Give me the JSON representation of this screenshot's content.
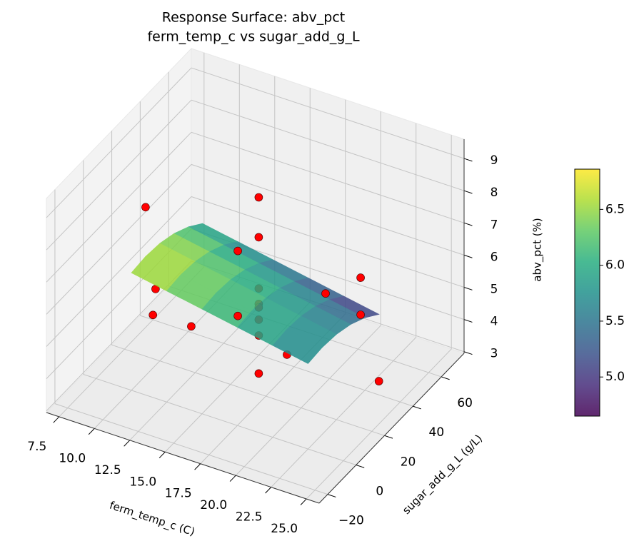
{
  "chart_data": {
    "type": "surface3d",
    "title": "Response Surface: abv_pct",
    "subtitle": "ferm_temp_c vs sugar_add_g_L",
    "xlabel": "ferm_temp_c (C)",
    "ylabel": "sugar_add_g_L (g/L)",
    "zlabel": "abv_pct (%)",
    "xlim": [
      6.6,
      25.9
    ],
    "ylim": [
      -26,
      76
    ],
    "zlim": [
      2.95,
      9.6
    ],
    "xticks": [
      7.5,
      {
        "value": 10,
        "label": "10.0"
      },
      12.5,
      {
        "value": 15,
        "label": "15.0"
      },
      17.5,
      {
        "value": 20,
        "label": "20.0"
      },
      22.5,
      {
        "value": 25,
        "label": "25.0"
      }
    ],
    "yticks": [
      {
        "value": -20,
        "label": "−20"
      },
      0,
      20,
      40,
      60
    ],
    "zticks": [
      3,
      4,
      5,
      6,
      7,
      8,
      9
    ],
    "grid": true,
    "surface": {
      "cmap": "viridis",
      "alpha": 0.85,
      "x": [
        10,
        12.5,
        15,
        17.5,
        20,
        22.5
      ],
      "y": [
        0,
        10,
        20,
        30,
        40,
        50
      ],
      "z": [
        [
          6.6,
          6.4,
          6.2,
          6.0,
          5.8,
          5.6
        ],
        [
          6.65,
          6.45,
          6.25,
          6.05,
          5.85,
          5.65
        ],
        [
          6.6,
          6.4,
          6.2,
          6.0,
          5.8,
          5.6
        ],
        [
          6.45,
          6.25,
          6.05,
          5.85,
          5.65,
          5.45
        ],
        [
          6.2,
          6.0,
          5.8,
          5.6,
          5.4,
          5.2
        ],
        [
          5.85,
          5.65,
          5.45,
          5.25,
          5.05,
          4.85
        ]
      ]
    },
    "points": {
      "color": "#ff0000",
      "x": [
        10,
        10,
        7.5,
        16.25,
        12,
        16.5,
        16.5,
        16.5,
        16.5,
        16.5,
        16.5,
        16.5,
        16.5,
        20,
        16.5,
        22.2,
        22.2,
        25,
        12
      ],
      "y": [
        10,
        17,
        40,
        -20,
        55,
        25,
        25,
        25,
        25,
        25,
        25,
        25,
        25,
        10,
        72,
        40,
        40,
        25,
        55
      ],
      "z": [
        8.18,
        5.32,
        3.1,
        6.76,
        5.06,
        8.75,
        7.51,
        5.92,
        5.44,
        5.33,
        4.95,
        4.46,
        3.28,
        5.06,
        3.62,
        6.4,
        5.25,
        4.28,
        3.04
      ]
    },
    "colorbar": {
      "lim": [
        4.65,
        6.86
      ],
      "ticks": [
        {
          "value": 5,
          "label": "5.0"
        },
        5.5,
        {
          "value": 6,
          "label": "6.0"
        },
        6.5
      ]
    }
  }
}
